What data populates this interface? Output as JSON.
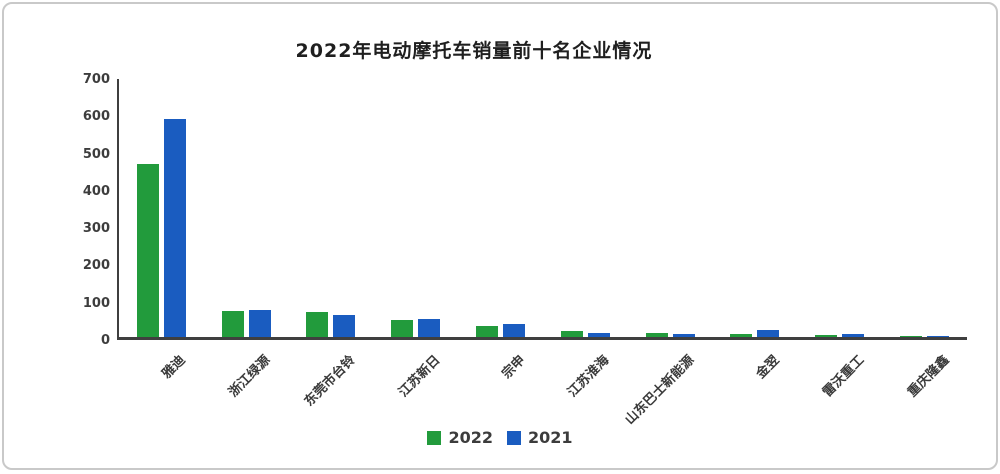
{
  "chart_data": {
    "type": "bar",
    "title": "2022年电动摩托车销量前十名企业情况",
    "categories": [
      "雅迪",
      "浙江绿源",
      "东莞市台铃",
      "江苏新日",
      "宗申",
      "江苏淮海",
      "山东巴士新能源",
      "金翌",
      "雷沃重工",
      "重庆隆鑫"
    ],
    "series": [
      {
        "name": "2022",
        "color": "#229B3C",
        "values": [
          465,
          70,
          68,
          45,
          30,
          16,
          10,
          8,
          6,
          4
        ]
      },
      {
        "name": "2021",
        "color": "#1A5CC0",
        "values": [
          585,
          72,
          60,
          48,
          36,
          12,
          8,
          20,
          8,
          2
        ]
      }
    ],
    "ylim": [
      0,
      700
    ],
    "yticks": [
      0,
      100,
      200,
      300,
      400,
      500,
      600,
      700
    ],
    "xlabel": "",
    "ylabel": "",
    "grid": false,
    "legend_position": "bottom",
    "axis_color": "#3f3f3f",
    "text_color": "#3a3a3a"
  }
}
